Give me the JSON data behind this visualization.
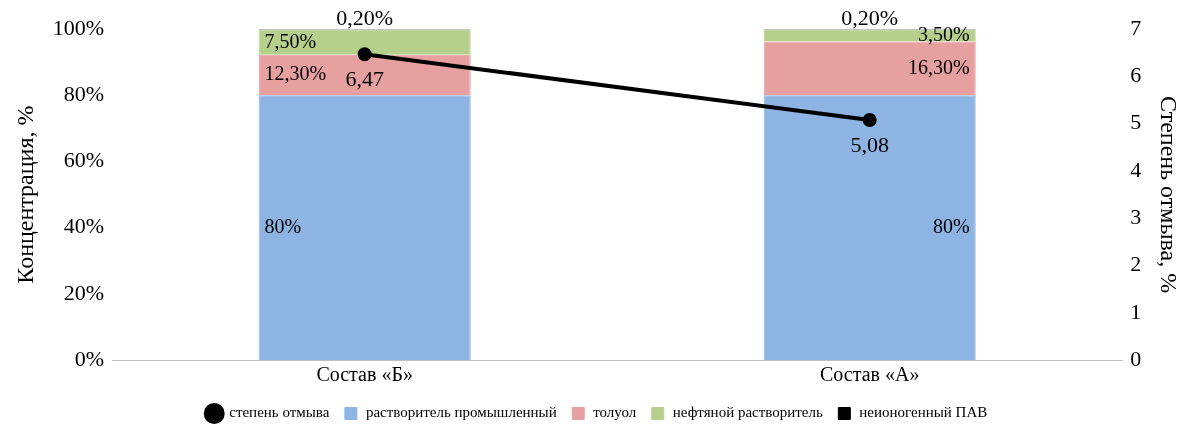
{
  "chart_data": {
    "type": "bar",
    "stacked": true,
    "categories": [
      "Состав «Б»",
      "Состав «А»"
    ],
    "ylabel": "Концентрация, %",
    "y2label": "Степень отмыва, %",
    "ylim": [
      0,
      100
    ],
    "yticks": [
      {
        "value": 0,
        "label": "0%"
      },
      {
        "value": 20,
        "label": "20%"
      },
      {
        "value": 40,
        "label": "40%"
      },
      {
        "value": 60,
        "label": "60%"
      },
      {
        "value": 80,
        "label": "80%"
      },
      {
        "value": 100,
        "label": "100%"
      }
    ],
    "y2lim": [
      0,
      7
    ],
    "y2ticks": [
      0,
      1,
      2,
      3,
      4,
      5,
      6,
      7
    ],
    "grid": false,
    "legend": "bottom",
    "series": [
      {
        "name": "растворитель промышленный",
        "color": "#8db4e2",
        "values": [
          80,
          80
        ],
        "value_labels": [
          "80%",
          "80%"
        ]
      },
      {
        "name": "толуол",
        "color": "#e6a0a0",
        "values": [
          12.3,
          16.3
        ],
        "value_labels": [
          "12,30%",
          "16,30%"
        ]
      },
      {
        "name": "нефтяной растворитель",
        "color": "#b5d08a",
        "values": [
          7.5,
          3.5
        ],
        "value_labels": [
          "7,50%",
          "3,50%"
        ]
      },
      {
        "name": "неионогенный ПАВ",
        "color": "#000000",
        "values": [
          0.2,
          0.2
        ],
        "value_labels": [
          "0,20%",
          "0,20%"
        ]
      },
      {
        "name": "степень отмыва",
        "type": "line",
        "axis": "y2",
        "color": "#000000",
        "marker": "circle",
        "line_style": "solid",
        "values": [
          6.47,
          5.08
        ],
        "value_labels": [
          "6,47",
          "5,08"
        ]
      }
    ]
  }
}
